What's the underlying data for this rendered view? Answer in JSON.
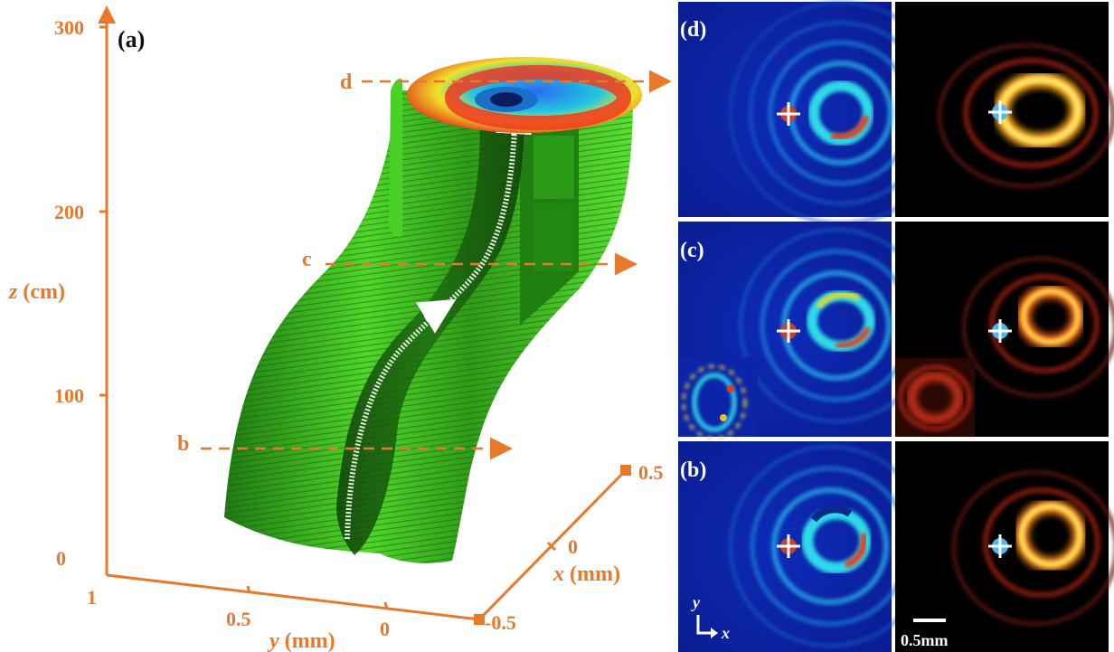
{
  "figure": {
    "panel_a_label": "(a)",
    "z_axis": {
      "label_var": "z",
      "label_unit": " (cm)",
      "ticks": [
        "0",
        "100",
        "200",
        "300"
      ]
    },
    "y_axis": {
      "label_var": "y",
      "label_unit": " (mm)",
      "ticks": [
        "1",
        "0.5",
        "0"
      ]
    },
    "x_axis": {
      "label_var": "x",
      "label_unit": " (mm)",
      "ticks": [
        "-0.5",
        "0",
        "0.5"
      ]
    },
    "slice_labels": [
      "b",
      "c",
      "d"
    ],
    "row_labels": [
      "(d)",
      "(c)",
      "(b)"
    ],
    "coord_labels": {
      "y": "y",
      "x": "x"
    },
    "scale_bar": "0.5mm"
  },
  "colors": {
    "axis": "#e8782a",
    "sim_background": "#0b1e9a",
    "exp_background": "#000000",
    "guide_green": "#3ec51a"
  }
}
